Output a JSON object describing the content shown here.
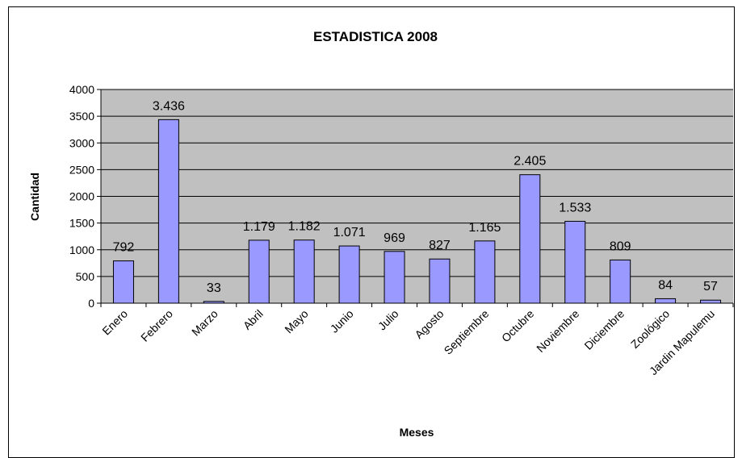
{
  "chart_data": {
    "type": "bar",
    "title": "ESTADISTICA 2008",
    "xlabel": "Meses",
    "ylabel": "Cantidad",
    "ylim": [
      0,
      4000
    ],
    "yticks": [
      0,
      500,
      1000,
      1500,
      2000,
      2500,
      3000,
      3500,
      4000
    ],
    "ytick_labels": [
      "0",
      "500",
      "1000",
      "1500",
      "2000",
      "2500",
      "3000",
      "3500",
      "4000"
    ],
    "grid": true,
    "legend": "none",
    "categories": [
      "Enero",
      "Febrero",
      "Marzo",
      "Abril",
      "Mayo",
      "Junio",
      "Julio",
      "Agosto",
      "Septiembre",
      "Octubre",
      "Noviembre",
      "Diciembre",
      "Zoológico",
      "Jardin Mapulemu"
    ],
    "values": [
      792,
      3436,
      33,
      1179,
      1182,
      1071,
      969,
      827,
      1165,
      2405,
      1533,
      809,
      84,
      57
    ],
    "data_labels": [
      "792",
      "3.436",
      "33",
      "1.179",
      "1.182",
      "1.071",
      "969",
      "827",
      "1.165",
      "2.405",
      "1.533",
      "809",
      "84",
      "57"
    ],
    "colors": {
      "bar_fill": "#9999ff",
      "bar_stroke": "#000000",
      "plot_background": "#c0c0c0",
      "gridline": "#000000"
    }
  }
}
